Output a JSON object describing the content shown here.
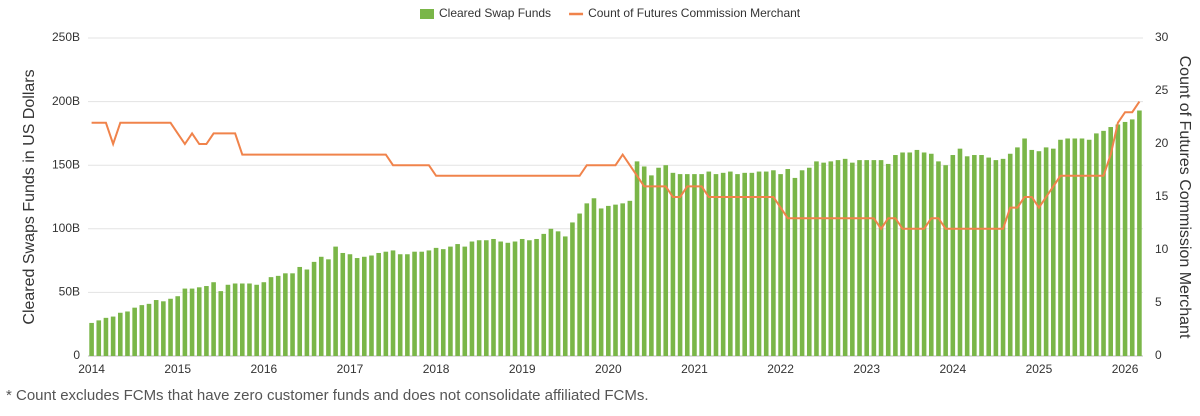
{
  "chart_data": {
    "type": "bar",
    "y_title": "Cleared Swaps Funds in US Dollars",
    "y2_title": "Count of Futures Commission Merchant",
    "footnote": "* Count excludes FCMs that have zero customer funds and does not consolidate affiliated FCMs.",
    "categories": [
      "2014",
      null,
      null,
      null,
      null,
      null,
      null,
      null,
      null,
      null,
      null,
      null,
      "2015",
      null,
      null,
      null,
      null,
      null,
      null,
      null,
      null,
      null,
      null,
      null,
      "2016",
      null,
      null,
      null,
      null,
      null,
      null,
      null,
      null,
      null,
      null,
      null,
      "2017",
      null,
      null,
      null,
      null,
      null,
      null,
      null,
      null,
      null,
      null,
      null,
      "2018",
      null,
      null,
      null,
      null,
      null,
      null,
      null,
      null,
      null,
      null,
      null,
      "2019",
      null,
      null,
      null,
      null,
      null,
      null,
      null,
      null,
      null,
      null,
      null,
      "2020",
      null,
      null,
      null,
      null,
      null,
      null,
      null,
      null,
      null,
      null,
      null,
      "2021",
      null,
      null,
      null,
      null,
      null,
      null,
      null,
      null,
      null,
      null,
      null,
      "2022",
      null,
      null,
      null,
      null,
      null,
      null,
      null,
      null,
      null,
      null,
      null,
      "2023",
      null,
      null,
      null,
      null,
      null,
      null,
      null,
      null,
      null,
      null,
      null,
      "2024",
      null,
      null,
      null,
      null,
      null,
      null,
      null,
      null,
      null,
      null,
      null,
      "2025",
      null,
      null,
      null,
      null,
      null,
      null,
      null,
      null,
      null,
      null,
      null,
      "2026",
      null,
      null
    ],
    "series": [
      {
        "name": "Cleared Swap Funds",
        "type": "bar",
        "color": "#7ab648",
        "values": [
          26,
          28,
          30,
          31,
          34,
          35,
          38,
          40,
          41,
          44,
          43,
          45,
          47,
          53,
          53,
          54,
          55,
          58,
          51,
          56,
          57,
          57,
          57,
          56,
          58,
          62,
          63,
          65,
          65,
          70,
          68,
          74,
          78,
          76,
          86,
          81,
          80,
          77,
          78,
          79,
          81,
          82,
          83,
          80,
          80,
          82,
          82,
          83,
          85,
          84,
          86,
          88,
          86,
          90,
          91,
          91,
          92,
          90,
          89,
          90,
          92,
          91,
          92,
          96,
          100,
          98,
          94,
          105,
          112,
          120,
          124,
          116,
          118,
          119,
          120,
          122,
          153,
          149,
          142,
          148,
          150,
          144,
          143,
          143,
          143,
          143,
          145,
          143,
          144,
          145,
          143,
          144,
          144,
          145,
          145,
          146,
          143,
          147,
          140,
          146,
          148,
          153,
          152,
          153,
          154,
          155,
          152,
          154,
          154,
          154,
          154,
          151,
          158,
          160,
          160,
          162,
          160,
          159,
          153,
          150,
          158,
          163,
          157,
          158,
          158,
          156,
          154,
          155,
          159,
          164,
          171,
          162,
          161,
          164,
          163,
          170,
          171,
          171,
          171,
          170,
          175,
          177,
          180,
          182,
          184,
          186,
          193
        ]
      },
      {
        "name": "Count of Futures Commission Merchant",
        "type": "line",
        "axis": "y2",
        "color": "#f0834b",
        "values": [
          22,
          22,
          22,
          20,
          22,
          22,
          22,
          22,
          22,
          22,
          22,
          22,
          21,
          20,
          21,
          20,
          20,
          21,
          21,
          21,
          21,
          19,
          19,
          19,
          19,
          19,
          19,
          19,
          19,
          19,
          19,
          19,
          19,
          19,
          19,
          19,
          19,
          19,
          19,
          19,
          19,
          19,
          18,
          18,
          18,
          18,
          18,
          18,
          17,
          17,
          17,
          17,
          17,
          17,
          17,
          17,
          17,
          17,
          17,
          17,
          17,
          17,
          17,
          17,
          17,
          17,
          17,
          17,
          17,
          18,
          18,
          18,
          18,
          18,
          19,
          18,
          17,
          16,
          16,
          16,
          16,
          15,
          15,
          16,
          16,
          16,
          15,
          15,
          15,
          15,
          15,
          15,
          15,
          15,
          15,
          15,
          14,
          13,
          13,
          13,
          13,
          13,
          13,
          13,
          13,
          13,
          13,
          13,
          13,
          13,
          12,
          13,
          13,
          12,
          12,
          12,
          12,
          13,
          13,
          12,
          12,
          12,
          12,
          12,
          12,
          12,
          12,
          12,
          14,
          14,
          15,
          15,
          14,
          15,
          16,
          17,
          17,
          17,
          17,
          17,
          17,
          17,
          19,
          22,
          23,
          23,
          24
        ]
      }
    ],
    "ylim": [
      0,
      250
    ],
    "yticks": [
      {
        "value": 0,
        "label": "0"
      },
      {
        "value": 50,
        "label": "50B"
      },
      {
        "value": 100,
        "label": "100B"
      },
      {
        "value": 150,
        "label": "150B"
      },
      {
        "value": 200,
        "label": "200B"
      },
      {
        "value": 250,
        "label": "250B"
      }
    ],
    "y2lim": [
      0,
      30
    ],
    "y2ticks": [
      0,
      5,
      10,
      15,
      20,
      25,
      30
    ],
    "grid": true
  }
}
